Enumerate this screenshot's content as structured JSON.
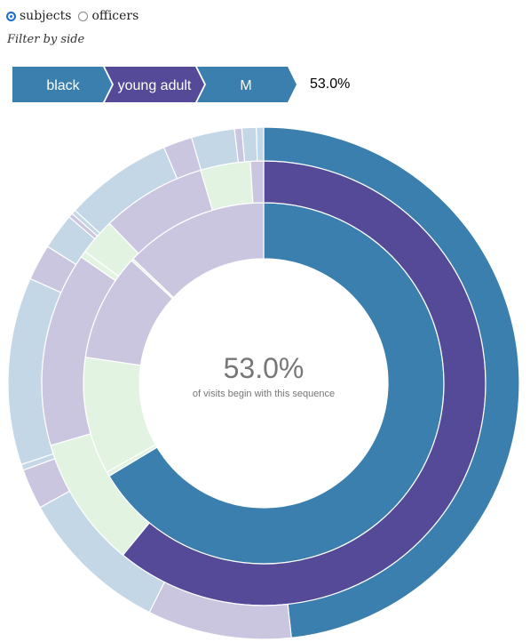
{
  "controls": {
    "side_options": [
      {
        "label": "subjects",
        "selected": true
      },
      {
        "label": "officers",
        "selected": false
      }
    ],
    "filter_label": "Filter by side"
  },
  "breadcrumb": {
    "items": [
      {
        "label": "black",
        "color": "#3a7fad"
      },
      {
        "label": "young adult",
        "color": "#544a97"
      },
      {
        "label": "M",
        "color": "#3a7fad"
      }
    ],
    "percentage": "53.0%"
  },
  "center": {
    "percentage": "53.0%",
    "caption": "of visits begin with this sequence"
  },
  "chart_data": {
    "type": "sunburst",
    "unit": "percent of visits",
    "colors": {
      "race_selected": "#3a7fad",
      "age_selected": "#544a97",
      "race_faded": "#c3d7e6",
      "age_faded": "#cbc6e0",
      "other_faded": "#e2f3e2"
    },
    "rings": [
      {
        "level": "race",
        "segments": [
          {
            "value": 66.4,
            "color": "#3a7fad",
            "selected": true
          },
          {
            "value": 0.4,
            "color": "#e2f3e2"
          },
          {
            "value": 10.5,
            "color": "#e2f3e2"
          },
          {
            "value": 9.6,
            "color": "#cbc6e0"
          },
          {
            "value": 0.2,
            "color": "#e2f3e2"
          },
          {
            "value": 12.9,
            "color": "#cbc6e0"
          }
        ]
      },
      {
        "level": "age",
        "segments": [
          {
            "value": 63.8,
            "color": "#544a97",
            "selected": true
          },
          {
            "value": 10.0,
            "color": "#e2f3e2"
          },
          {
            "value": 14.8,
            "color": "#cbc6e0"
          },
          {
            "value": 0.5,
            "color": "#e2f3e2"
          },
          {
            "value": 2.8,
            "color": "#e2f3e2"
          },
          {
            "value": 8.0,
            "color": "#cbc6e0"
          },
          {
            "value": 3.8,
            "color": "#e2f3e2"
          },
          {
            "value": 1.0,
            "color": "#cbc6e0"
          }
        ]
      },
      {
        "level": "sex",
        "segments": [
          {
            "value": 53.0,
            "color": "#3a7fad",
            "selected": true
          },
          {
            "value": 10.0,
            "color": "#cbc6e0"
          },
          {
            "value": 10.5,
            "color": "#c3d7e6"
          },
          {
            "value": 2.8,
            "color": "#cbc6e0"
          },
          {
            "value": 0.4,
            "color": "#c3d7e6"
          },
          {
            "value": 13.0,
            "color": "#c3d7e6"
          },
          {
            "value": 2.5,
            "color": "#cbc6e0"
          },
          {
            "value": 2.5,
            "color": "#c3d7e6"
          },
          {
            "value": 0.3,
            "color": "#cbc6e0"
          },
          {
            "value": 0.3,
            "color": "#c3d7e6"
          },
          {
            "value": 7.5,
            "color": "#c3d7e6"
          },
          {
            "value": 2.0,
            "color": "#cbc6e0"
          },
          {
            "value": 3.0,
            "color": "#c3d7e6"
          },
          {
            "value": 0.5,
            "color": "#cbc6e0"
          },
          {
            "value": 1.0,
            "color": "#c3d7e6"
          },
          {
            "value": 0.5,
            "color": "#c3d7e6"
          }
        ]
      }
    ]
  }
}
